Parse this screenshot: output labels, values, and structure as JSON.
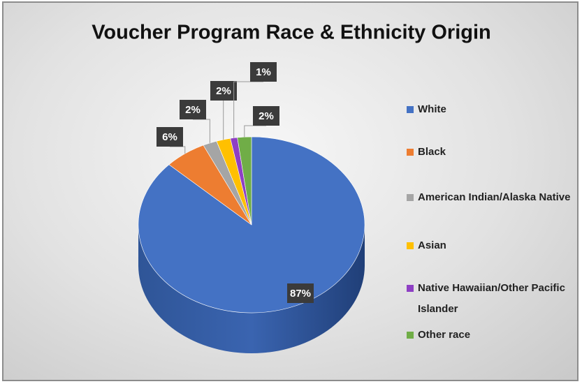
{
  "chart_data": {
    "type": "pie",
    "title": "Voucher Program Race & Ethnicity Origin",
    "categories": [
      "White",
      "Black",
      "American Indian/Alaska Native",
      "Asian",
      "Native Hawaiian/Other Pacific Islander",
      "Other race"
    ],
    "values": [
      87,
      6,
      2,
      2,
      1,
      2
    ],
    "value_labels": [
      "87%",
      "6%",
      "2%",
      "2%",
      "1%",
      "2%"
    ],
    "colors": [
      "#4472c4",
      "#ed7d31",
      "#a5a5a5",
      "#ffc000",
      "#8e3fc4",
      "#70ad47"
    ],
    "legend": "right"
  }
}
